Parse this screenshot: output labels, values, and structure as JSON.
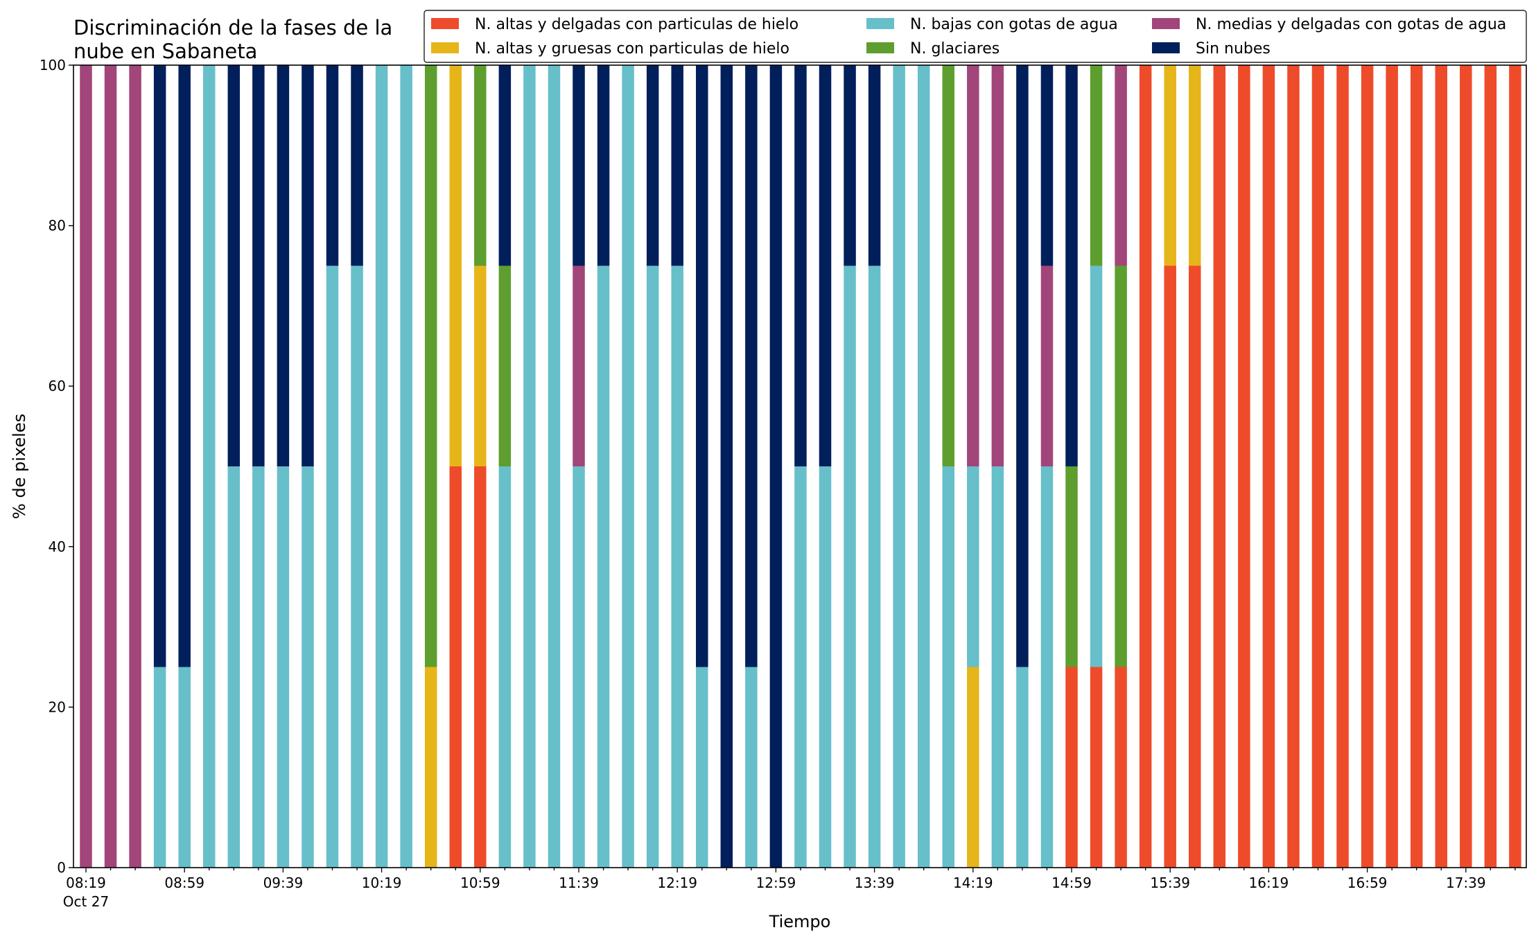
{
  "chart_data": {
    "type": "bar",
    "stacked": true,
    "title_lines": [
      "Discriminación de la fases de la",
      "nube en Sabaneta"
    ],
    "xlabel": "Tiempo",
    "ylabel": "% de pixeles",
    "ylim": [
      0,
      100
    ],
    "yticks": [
      0,
      20,
      40,
      60,
      80,
      100
    ],
    "grid": false,
    "legend_position": "top-right",
    "x_start": "08:19",
    "x_interval_minutes": 10,
    "x_tick_labels": [
      {
        "index": 0,
        "label": "08:19",
        "sublabel": "Oct 27"
      },
      {
        "index": 4,
        "label": "08:59"
      },
      {
        "index": 8,
        "label": "09:39"
      },
      {
        "index": 12,
        "label": "10:19"
      },
      {
        "index": 16,
        "label": "10:59"
      },
      {
        "index": 20,
        "label": "11:39"
      },
      {
        "index": 24,
        "label": "12:19"
      },
      {
        "index": 28,
        "label": "12:59"
      },
      {
        "index": 32,
        "label": "13:39"
      },
      {
        "index": 36,
        "label": "14:19"
      },
      {
        "index": 40,
        "label": "14:59"
      },
      {
        "index": 44,
        "label": "15:39"
      },
      {
        "index": 48,
        "label": "16:19"
      },
      {
        "index": 52,
        "label": "16:59"
      },
      {
        "index": 56,
        "label": "17:39"
      }
    ],
    "series": [
      {
        "name": "N. altas y delgadas con particulas de hielo",
        "color": "#ee4b2b",
        "values": [
          0,
          0,
          0,
          0,
          0,
          0,
          0,
          0,
          0,
          0,
          0,
          0,
          0,
          0,
          0,
          50,
          50,
          0,
          0,
          0,
          0,
          0,
          0,
          0,
          0,
          0,
          0,
          0,
          0,
          0,
          0,
          0,
          0,
          0,
          0,
          0,
          0,
          0,
          0,
          0,
          25,
          25,
          25,
          100,
          75,
          75,
          100,
          100,
          100,
          100,
          100,
          100,
          100,
          100,
          100,
          100,
          100,
          100,
          100
        ]
      },
      {
        "name": "N. altas y gruesas con particulas de hielo",
        "color": "#e6b51a",
        "values": [
          0,
          0,
          0,
          0,
          0,
          0,
          0,
          0,
          0,
          0,
          0,
          0,
          0,
          0,
          25,
          50,
          25,
          0,
          0,
          0,
          0,
          0,
          0,
          0,
          0,
          0,
          0,
          0,
          0,
          0,
          0,
          0,
          0,
          0,
          0,
          0,
          25,
          0,
          0,
          0,
          0,
          0,
          0,
          0,
          25,
          25,
          0,
          0,
          0,
          0,
          0,
          0,
          0,
          0,
          0,
          0,
          0,
          0,
          0
        ]
      },
      {
        "name": "N. bajas con gotas de agua",
        "color": "#67bfca",
        "values": [
          0,
          0,
          0,
          25,
          25,
          100,
          50,
          50,
          50,
          50,
          75,
          75,
          100,
          100,
          0,
          0,
          0,
          50,
          100,
          100,
          50,
          75,
          100,
          75,
          75,
          25,
          0,
          25,
          0,
          50,
          50,
          75,
          75,
          100,
          100,
          50,
          25,
          50,
          25,
          50,
          0,
          50,
          0,
          0,
          0,
          0,
          0,
          0,
          0,
          0,
          0,
          0,
          0,
          0,
          0,
          0,
          0,
          0,
          0
        ]
      },
      {
        "name": "N. glaciares",
        "color": "#5e9e2e",
        "values": [
          0,
          0,
          0,
          0,
          0,
          0,
          0,
          0,
          0,
          0,
          0,
          0,
          0,
          0,
          75,
          0,
          25,
          25,
          0,
          0,
          0,
          0,
          0,
          0,
          0,
          0,
          0,
          0,
          0,
          0,
          0,
          0,
          0,
          0,
          0,
          50,
          0,
          0,
          0,
          0,
          25,
          25,
          50,
          0,
          0,
          0,
          0,
          0,
          0,
          0,
          0,
          0,
          0,
          0,
          0,
          0,
          0,
          0,
          0
        ]
      },
      {
        "name": "N. medias y delgadas con gotas de agua",
        "color": "#a2457a",
        "values": [
          100,
          100,
          100,
          0,
          0,
          0,
          0,
          0,
          0,
          0,
          0,
          0,
          0,
          0,
          0,
          0,
          0,
          0,
          0,
          0,
          25,
          0,
          0,
          0,
          0,
          0,
          0,
          0,
          0,
          0,
          0,
          0,
          0,
          0,
          0,
          0,
          50,
          50,
          0,
          25,
          0,
          0,
          25,
          0,
          0,
          0,
          0,
          0,
          0,
          0,
          0,
          0,
          0,
          0,
          0,
          0,
          0,
          0,
          0
        ]
      },
      {
        "name": "Sin nubes",
        "color": "#001f5b",
        "values": [
          0,
          0,
          0,
          75,
          75,
          0,
          50,
          50,
          50,
          50,
          25,
          25,
          0,
          0,
          0,
          0,
          0,
          25,
          0,
          0,
          25,
          25,
          0,
          25,
          25,
          75,
          100,
          75,
          100,
          50,
          50,
          25,
          25,
          0,
          0,
          0,
          0,
          0,
          75,
          25,
          50,
          0,
          0,
          0,
          0,
          0,
          0,
          0,
          0,
          0,
          0,
          0,
          0,
          0,
          0,
          0,
          0,
          0,
          0
        ]
      }
    ]
  }
}
